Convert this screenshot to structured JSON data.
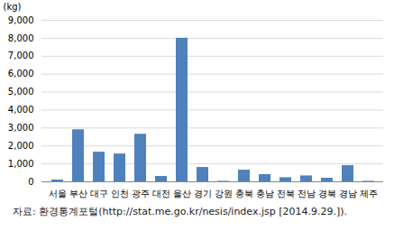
{
  "chart_data": {
    "type": "bar",
    "y_label": "(kg)",
    "caption": "자료: 환경통계포털(http://stat.me.go.kr/nesis/index.jsp [2014.9.29.]).",
    "categories": [
      "서울",
      "부산",
      "대구",
      "인천",
      "광주",
      "대전",
      "울산",
      "경기",
      "강원",
      "충북",
      "충남",
      "전북",
      "전남",
      "경북",
      "경남",
      "제주"
    ],
    "values": [
      100,
      2900,
      1650,
      1550,
      2650,
      300,
      8000,
      800,
      30,
      650,
      400,
      230,
      330,
      200,
      900,
      30
    ],
    "color": "#4f81bd",
    "ylim": [
      0,
      9000
    ],
    "yticks": [
      0,
      {
        "value": 1000,
        "label": "1,000"
      },
      {
        "value": 2000,
        "label": "2,000"
      },
      {
        "value": 3000,
        "label": "3,000"
      },
      {
        "value": 4000,
        "label": "4,000"
      },
      {
        "value": 5000,
        "label": "5,000"
      },
      {
        "value": 6000,
        "label": "6,000"
      },
      {
        "value": 7000,
        "label": "7,000"
      },
      {
        "value": 8000,
        "label": "8,000"
      },
      {
        "value": 9000,
        "label": "9,000"
      }
    ],
    "grid": true
  }
}
